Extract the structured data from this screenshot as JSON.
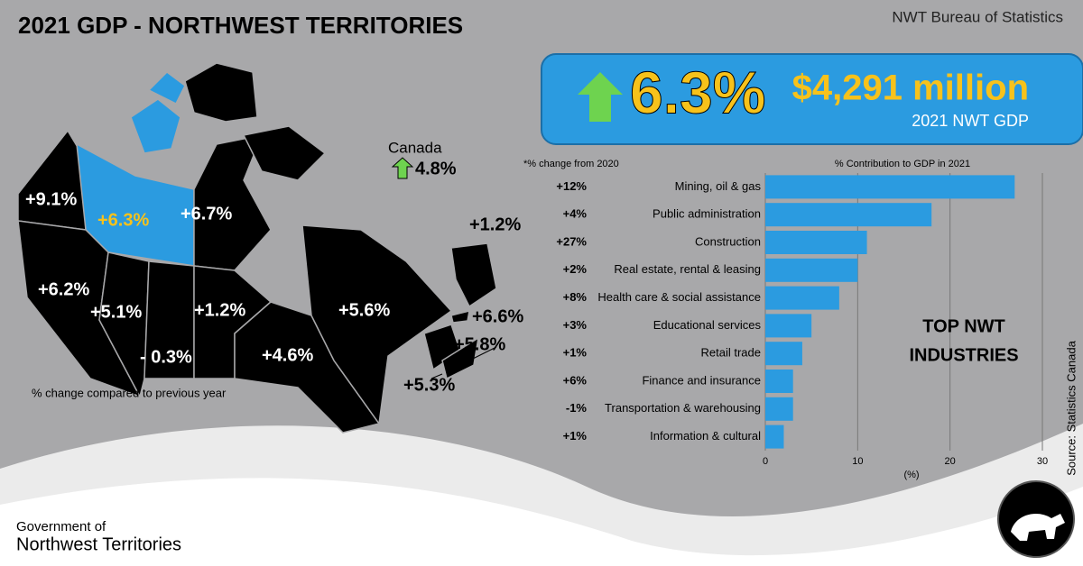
{
  "header": {
    "title": "2021 GDP - NORTHWEST TERRITORIES",
    "source": "NWT Bureau of Statistics"
  },
  "highlight": {
    "change": "6.3%",
    "gdp": "$4,291 million",
    "gdp_label": "2021 NWT GDP"
  },
  "canada": {
    "label": "Canada",
    "change": "4.8%"
  },
  "map": {
    "labels": [
      "+9.1%",
      "+6.3%",
      "+6.7%",
      "+6.2%",
      "+5.1%",
      "- 0.3%",
      "+1.2%",
      "+4.6%",
      "+5.6%",
      "+1.2%",
      "+6.6%",
      "+5.8%",
      "+5.3%"
    ],
    "note": "% change compared to previous year"
  },
  "chart_data": {
    "type": "bar",
    "orientation": "horizontal",
    "title": "% Contribution to GDP in 2021",
    "change_title": "*% change from 2020",
    "categories": [
      "Mining, oil & gas",
      "Public administration",
      "Construction",
      "Real estate, rental & leasing",
      "Health care & social assistance",
      "Educational services",
      "Retail trade",
      "Finance and insurance",
      "Transportation & warehousing",
      "Information & cultural"
    ],
    "values": [
      27,
      18,
      11,
      10,
      8,
      5,
      4,
      3,
      3,
      2
    ],
    "change_labels": [
      "+12%",
      "+4%",
      "+27%",
      "+2%",
      "+8%",
      "+3%",
      "+1%",
      "+6%",
      "-1%",
      "+1%"
    ],
    "color": "#2b9be0",
    "xlim": [
      0,
      30
    ],
    "xticks": [
      0,
      10,
      20,
      30
    ],
    "xlabel": "(%)",
    "grid": true,
    "annotation": [
      "TOP NWT",
      "INDUSTRIES"
    ],
    "source": "Source: Statistics Canada"
  },
  "footer": {
    "line1": "Government of",
    "line2": "Northwest Territories"
  }
}
